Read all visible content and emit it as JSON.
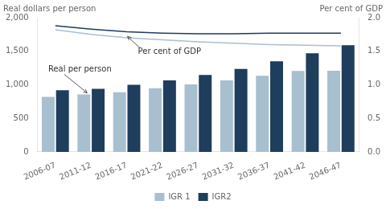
{
  "chart_data": {
    "type": "bar",
    "categories": [
      "2006-07",
      "2011-12",
      "2016-17",
      "2021-22",
      "2026-27",
      "2031-32",
      "2036-37",
      "2041-42",
      "2046-47"
    ],
    "series": [
      {
        "name": "IGR 1",
        "color": "#a8bfd0",
        "values": [
          820,
          855,
          890,
          950,
          1005,
          1065,
          1135,
          1205,
          1210
        ]
      },
      {
        "name": "IGR2",
        "color": "#1f3d5c",
        "values": [
          920,
          940,
          1000,
          1065,
          1145,
          1235,
          1350,
          1470,
          1590
        ]
      },
      {
        "type": "line",
        "axis": "y2",
        "color": "#a8bfd0",
        "values": [
          1.82,
          1.75,
          1.7,
          1.67,
          1.64,
          1.62,
          1.6,
          1.59,
          1.58
        ]
      },
      {
        "type": "line",
        "axis": "y2",
        "color": "#1f3d5c",
        "values": [
          1.88,
          1.83,
          1.79,
          1.77,
          1.76,
          1.76,
          1.77,
          1.77,
          1.77
        ]
      }
    ],
    "ylabel": "Real dollars per person",
    "y2label": "Per cent of GDP",
    "ylim": [
      0,
      2000
    ],
    "yticks": [
      0,
      500,
      {
        "value": 1000,
        "label": "1,000"
      },
      {
        "value": 1500,
        "label": "1,500"
      },
      {
        "value": 2000,
        "label": "2,000"
      }
    ],
    "y2lim": [
      0.0,
      2.0
    ],
    "y2ticks": [
      {
        "value": 0,
        "label": "0.0"
      },
      {
        "value": 0.5,
        "label": "0.5"
      },
      {
        "value": 1,
        "label": "1.0"
      },
      {
        "value": 1.5,
        "label": "1.5"
      },
      {
        "value": 2,
        "label": "2.0"
      }
    ],
    "annotations": [
      {
        "text": "Per cent of GDP"
      },
      {
        "text": "Real per person"
      }
    ],
    "legend": "bottom",
    "grid": false
  }
}
